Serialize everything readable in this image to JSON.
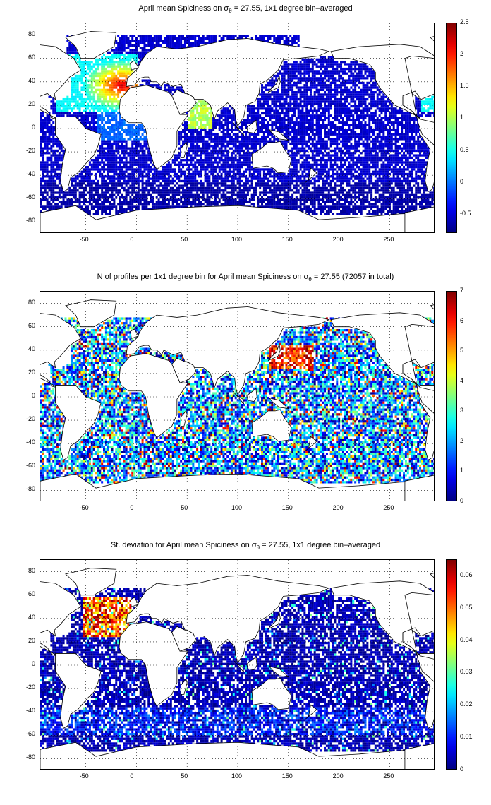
{
  "panels": [
    {
      "title_main": "April mean Spiciness on ",
      "title_sigma": "σ",
      "title_sub": "θ",
      "title_rest": " = 27.55, 1x1 degree bin–averaged",
      "x_ticks": [
        "-50",
        "0",
        "50",
        "100",
        "150",
        "200",
        "250"
      ],
      "y_ticks": [
        "80",
        "60",
        "40",
        "20",
        "0",
        "-20",
        "-40",
        "-60",
        "-80"
      ],
      "cbar_ticks": [
        "2.5",
        "2",
        "1.5",
        "1",
        "0.5",
        "0",
        "-0.5"
      ],
      "cbar_range": [
        -0.8,
        2.5
      ],
      "field": "spiciness"
    },
    {
      "title_main": "N of profiles per 1x1 degree bin for April mean Spiciness on ",
      "title_sigma": "σ",
      "title_sub": "θ",
      "title_rest": " = 27.55 (72057 in total)",
      "x_ticks": [
        "-50",
        "0",
        "50",
        "100",
        "150",
        "200",
        "250"
      ],
      "y_ticks": [
        "80",
        "60",
        "40",
        "20",
        "0",
        "-20",
        "-40",
        "-60",
        "-80"
      ],
      "cbar_ticks": [
        "7",
        "6",
        "5",
        "4",
        "3",
        "2",
        "1",
        "0"
      ],
      "cbar_range": [
        0,
        7
      ],
      "field": "count"
    },
    {
      "title_main": "St. deviation for April mean Spiciness on ",
      "title_sigma": "σ",
      "title_sub": "θ",
      "title_rest": " = 27.55, 1x1 degree bin–averaged",
      "x_ticks": [
        "-50",
        "0",
        "50",
        "100",
        "150",
        "200",
        "250"
      ],
      "y_ticks": [
        "80",
        "60",
        "40",
        "20",
        "0",
        "-20",
        "-40",
        "-60",
        "-80"
      ],
      "cbar_ticks": [
        "0.06",
        "0.05",
        "0.04",
        "0.03",
        "0.02",
        "0.01",
        "0"
      ],
      "cbar_range": [
        0,
        0.065
      ],
      "field": "stdev"
    }
  ],
  "map_extent": {
    "lon": [
      -95,
      295
    ],
    "lat": [
      -90,
      90
    ]
  },
  "colormap": "jet"
}
